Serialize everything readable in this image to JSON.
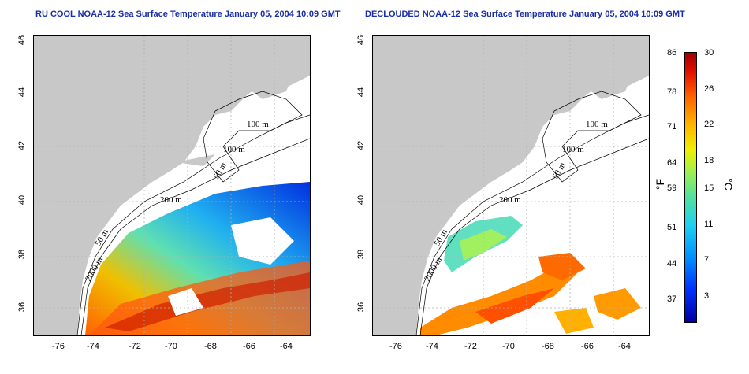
{
  "left_panel": {
    "title": "RU COOL NOAA-12 Sea Surface Temperature January 05, 2004 10:09 GMT",
    "contours": {
      "c100a": "100 m",
      "c100b": "100 m",
      "c50": "50 m",
      "c200": "200 m",
      "c50b": "50 m",
      "c2000": "2000 m"
    }
  },
  "right_panel": {
    "title": "DECLOUDED NOAA-12 Sea Surface Temperature January 05, 2004 10:09 GMT",
    "contours": {
      "c100a": "100 m",
      "c100b": "100 m",
      "c50": "50 m",
      "c200": "200 m",
      "c50b": "50 m",
      "c2000": "2000 m"
    }
  },
  "axes": {
    "x_ticks": [
      "-76",
      "-74",
      "-72",
      "-70",
      "-68",
      "-66",
      "-64"
    ],
    "y_ticks": [
      "46",
      "44",
      "42",
      "40",
      "38",
      "36"
    ]
  },
  "colorbar": {
    "fahrenheit_label": "°F",
    "celsius_label": "°C",
    "fahrenheit_ticks": [
      "86",
      "78",
      "71",
      "64",
      "59",
      "51",
      "44",
      "37"
    ],
    "celsius_ticks": [
      "30",
      "26",
      "22",
      "18",
      "15",
      "11",
      "7",
      "3"
    ]
  },
  "colors": {
    "land": "#c8c8c8",
    "title": "#1a2ea8",
    "grid": "#b0b0b0"
  }
}
